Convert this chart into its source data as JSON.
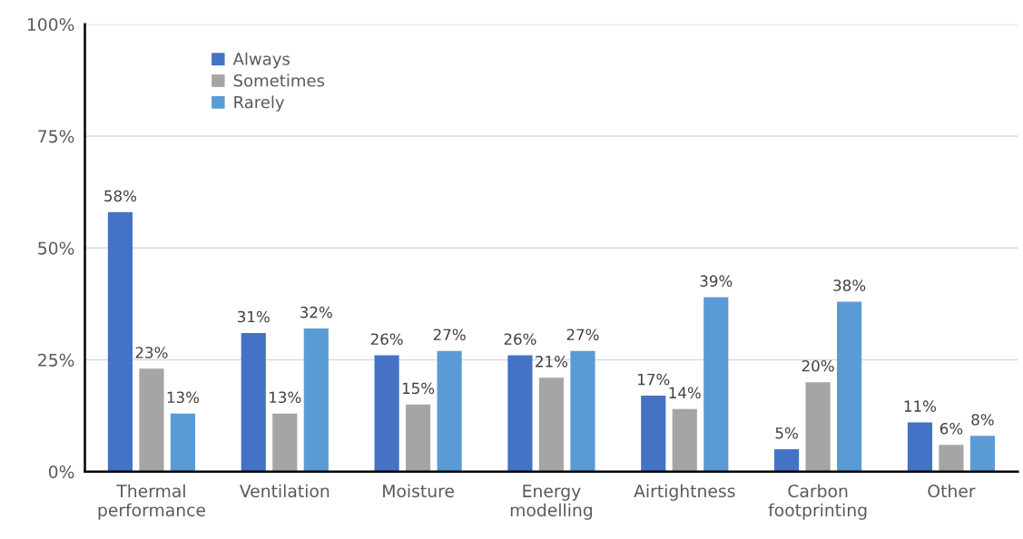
{
  "chart_data": {
    "type": "bar",
    "categories": [
      "Thermal performance",
      "Ventilation",
      "Moisture",
      "Energy modelling",
      "Airtightness",
      "Carbon footprinting",
      "Other"
    ],
    "series": [
      {
        "name": "Always",
        "color": "#4472c4",
        "values": [
          58,
          31,
          26,
          26,
          17,
          5,
          11
        ]
      },
      {
        "name": "Sometimes",
        "color": "#a5a5a5",
        "values": [
          23,
          13,
          15,
          21,
          14,
          20,
          6
        ]
      },
      {
        "name": "Rarely",
        "color": "#5b9bd5",
        "values": [
          13,
          32,
          27,
          27,
          39,
          38,
          8
        ]
      }
    ],
    "ylim": [
      0,
      100
    ],
    "yticks": [
      {
        "value": 0,
        "label": "0%"
      },
      {
        "value": 25,
        "label": "25%"
      },
      {
        "value": 50,
        "label": "50%"
      },
      {
        "value": 75,
        "label": "75%"
      },
      {
        "value": 100,
        "label": "100%"
      }
    ],
    "value_labels": [
      [
        "58%",
        "31%",
        "26%",
        "26%",
        "17%",
        "5%",
        "11%"
      ],
      [
        "23%",
        "13%",
        "15%",
        "21%",
        "14%",
        "20%",
        "6%"
      ],
      [
        "13%",
        "32%",
        "27%",
        "27%",
        "39%",
        "38%",
        "8%"
      ]
    ],
    "grid": "y",
    "legend": "top left"
  }
}
